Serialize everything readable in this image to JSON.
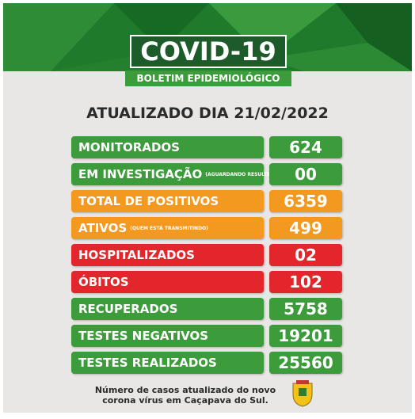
{
  "header": {
    "title": "COVID-19",
    "subtitle": "BOLETIM EPIDEMIOLÓGICO"
  },
  "date_line": "ATUALIZADO DIA 21/02/2022",
  "rows": [
    {
      "label": "MONITORADOS",
      "value": "624",
      "color": "#3c9b3a"
    },
    {
      "label": "EM INVESTIGAÇÃO",
      "note": "(AGUARDANDO RESULTADO)",
      "value": "00",
      "color": "#3c9b3a"
    },
    {
      "label": "TOTAL DE POSITIVOS",
      "value": "6359",
      "color": "#f3991f"
    },
    {
      "label": "ATIVOS",
      "note": "(QUEM ESTÁ TRANSMITINDO)",
      "value": "499",
      "color": "#f3991f"
    },
    {
      "label": "HOSPITALIZADOS",
      "value": "02",
      "color": "#e2262b"
    },
    {
      "label": "ÓBITOS",
      "value": "102",
      "color": "#e2262b"
    },
    {
      "label": "RECUPERADOS",
      "value": "5758",
      "color": "#3c9b3a"
    },
    {
      "label": "TESTES NEGATIVOS",
      "value": "19201",
      "color": "#3c9b3a"
    },
    {
      "label": "TESTES REALIZADOS",
      "value": "25560",
      "color": "#3c9b3a"
    }
  ],
  "footer": {
    "lines": [
      "Número de casos atualizado do novo",
      "corona vírus em Caçapava do Sul."
    ]
  }
}
